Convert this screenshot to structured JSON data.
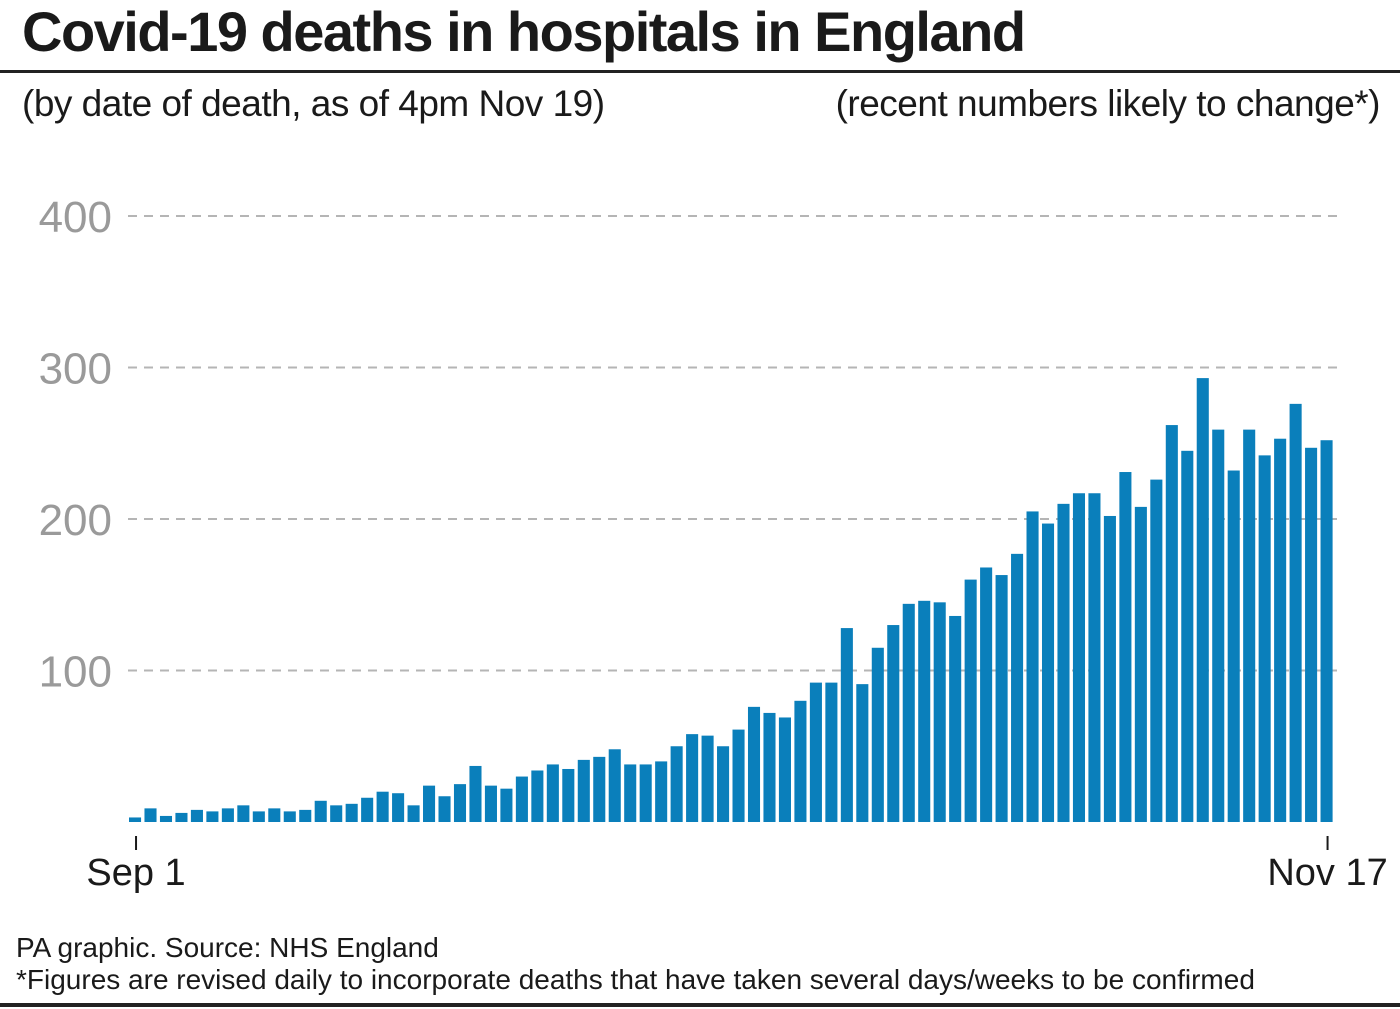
{
  "header": {
    "title": "Covid-19 deaths in hospitals in England",
    "subtitle_left": "(by date of death, as of 4pm Nov 19)",
    "subtitle_right": "(recent numbers likely to change*)"
  },
  "footer": {
    "source": "PA graphic. Source: NHS England",
    "note": "*Figures are revised daily to incorporate deaths that have taken several days/weeks to be confirmed"
  },
  "colors": {
    "bar": "#0a7fbb",
    "grid": "#b5b5b5",
    "tick_label": "#9a9a9a",
    "axis": "#1a1a1a"
  },
  "chart_data": {
    "type": "bar",
    "title": "Covid-19 deaths in hospitals in England",
    "xlabel": "",
    "ylabel": "",
    "x_start": "Sep 1",
    "x_end": "Nov 17",
    "x_tick_labels": [
      "Sep 1",
      "Nov 17"
    ],
    "y_ticks": [
      100,
      200,
      300,
      400
    ],
    "ylim": [
      0,
      400
    ],
    "grid": true,
    "values": [
      3,
      9,
      4,
      6,
      8,
      7,
      9,
      11,
      7,
      9,
      7,
      8,
      14,
      11,
      12,
      16,
      20,
      19,
      11,
      24,
      17,
      25,
      37,
      24,
      22,
      30,
      34,
      38,
      35,
      41,
      43,
      48,
      38,
      38,
      40,
      50,
      58,
      57,
      50,
      61,
      76,
      72,
      69,
      80,
      92,
      92,
      128,
      91,
      115,
      130,
      144,
      146,
      145,
      136,
      160,
      168,
      163,
      177,
      205,
      197,
      210,
      217,
      217,
      202,
      231,
      208,
      226,
      262,
      245,
      293,
      259,
      232,
      259,
      242,
      253,
      276,
      247,
      252
    ]
  }
}
